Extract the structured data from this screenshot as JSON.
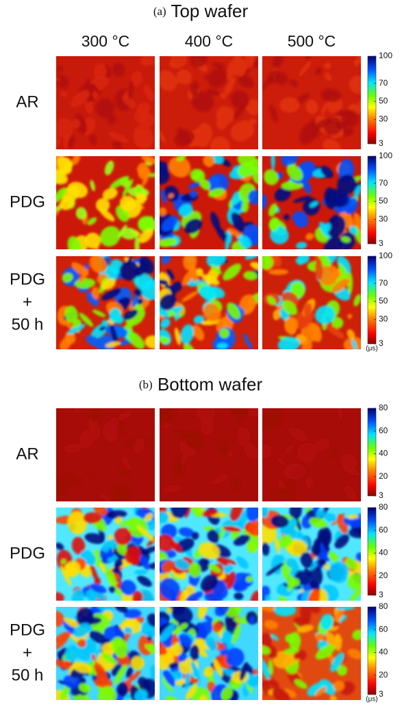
{
  "panels": [
    {
      "label": "(a)",
      "title": "Top wafer",
      "columns": [
        "300 °C",
        "400 °C",
        "500 °C"
      ],
      "unit": "(μs)",
      "rows": [
        {
          "label": [
            "AR"
          ],
          "colorbar": {
            "range": [
              3,
              100
            ],
            "ticks": [
              3,
              30,
              50,
              70,
              100
            ]
          }
        },
        {
          "label": [
            "PDG"
          ],
          "colorbar": {
            "range": [
              3,
              100
            ],
            "ticks": [
              3,
              30,
              50,
              70,
              100
            ]
          }
        },
        {
          "label": [
            "PDG",
            "+",
            "50 h"
          ],
          "colorbar": {
            "range": [
              3,
              100
            ],
            "ticks": [
              3,
              30,
              50,
              70,
              100
            ]
          }
        }
      ]
    },
    {
      "label": "(b)",
      "title": "Bottom wafer",
      "unit": "(μs)",
      "rows": [
        {
          "label": [
            "AR"
          ],
          "colorbar": {
            "range": [
              3,
              80
            ],
            "ticks": [
              3,
              20,
              40,
              60,
              80
            ]
          }
        },
        {
          "label": [
            "PDG"
          ],
          "colorbar": {
            "range": [
              3,
              80
            ],
            "ticks": [
              3,
              20,
              40,
              60,
              80
            ]
          }
        },
        {
          "label": [
            "PDG",
            "+",
            "50 h"
          ],
          "colorbar": {
            "range": [
              3,
              80
            ],
            "ticks": [
              3,
              20,
              40,
              60,
              80
            ]
          }
        }
      ]
    }
  ]
}
